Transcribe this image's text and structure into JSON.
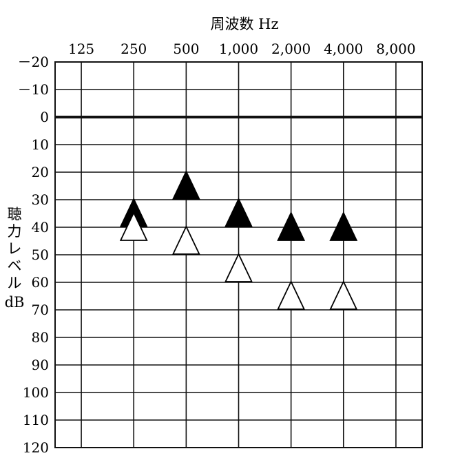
{
  "chart_data": {
    "type": "scatter",
    "title": "",
    "xlabel": "周波数 Hz",
    "ylabel_chars": [
      "聴",
      "力",
      "レ",
      "ベ",
      "ル"
    ],
    "ylabel_unit": "dB",
    "x_categories": [
      "125",
      "250",
      "500",
      "1,000",
      "2,000",
      "4,000",
      "8,000"
    ],
    "y_ticks": [
      "－20",
      "－10",
      "0",
      "10",
      "20",
      "30",
      "40",
      "50",
      "60",
      "70",
      "80",
      "90",
      "100",
      "110",
      "120"
    ],
    "ylim": [
      -20,
      120
    ],
    "y_inverted": true,
    "reference_line_y": 0,
    "grid": true,
    "series": [
      {
        "marker": "filled-triangle",
        "color": "#000000",
        "points": [
          {
            "x": "250",
            "y": 35
          },
          {
            "x": "500",
            "y": 25
          },
          {
            "x": "1,000",
            "y": 35
          },
          {
            "x": "2,000",
            "y": 40
          },
          {
            "x": "4,000",
            "y": 40
          }
        ]
      },
      {
        "marker": "open-triangle",
        "color": "#000000",
        "points": [
          {
            "x": "250",
            "y": 40
          },
          {
            "x": "500",
            "y": 45
          },
          {
            "x": "1,000",
            "y": 55
          },
          {
            "x": "2,000",
            "y": 65
          },
          {
            "x": "4,000",
            "y": 65
          }
        ]
      }
    ]
  }
}
